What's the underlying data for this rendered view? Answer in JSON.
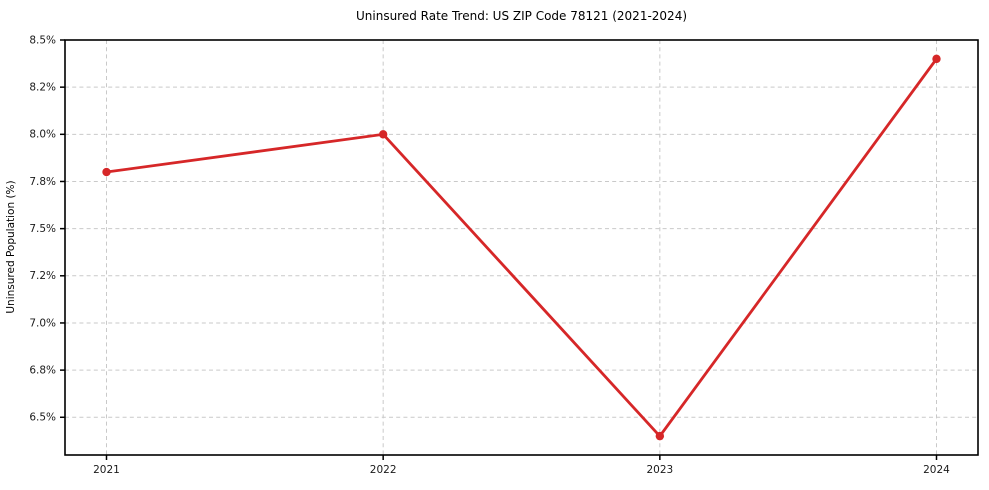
{
  "chart_data": {
    "type": "line",
    "title": "Uninsured Rate Trend: US ZIP Code 78121 (2021-2024)",
    "xlabel": "",
    "ylabel": "Uninsured Population (%)",
    "categories": [
      2021,
      2022,
      2023,
      2024
    ],
    "values": [
      7.8,
      8.0,
      6.4,
      8.4
    ],
    "unit": "%",
    "xlim": [
      2020.85,
      2024.15
    ],
    "ylim": [
      6.3,
      8.5
    ],
    "y_ticks": [
      {
        "value": 8.5,
        "label": "8.5%"
      },
      {
        "value": 8.25,
        "label": "8.2%"
      },
      {
        "value": 8.0,
        "label": "8.0%"
      },
      {
        "value": 7.75,
        "label": "7.8%"
      },
      {
        "value": 7.5,
        "label": "7.5%"
      },
      {
        "value": 7.25,
        "label": "7.2%"
      },
      {
        "value": 7.0,
        "label": "7.0%"
      },
      {
        "value": 6.75,
        "label": "6.8%"
      },
      {
        "value": 6.5,
        "label": "6.5%"
      }
    ],
    "x_ticks": [
      {
        "value": 2021,
        "label": "2021"
      },
      {
        "value": 2022,
        "label": "2022"
      },
      {
        "value": 2023,
        "label": "2023"
      },
      {
        "value": 2024,
        "label": "2024"
      }
    ],
    "grid": true,
    "grid_style": "dashed",
    "legend": "none",
    "marker": "circle",
    "colors": {
      "line": "#d62728",
      "marker": "#d62728",
      "grid": "#c9c9c9",
      "spine": "#000000",
      "tick_label": "#1a1a1a",
      "background": "#ffffff"
    }
  }
}
